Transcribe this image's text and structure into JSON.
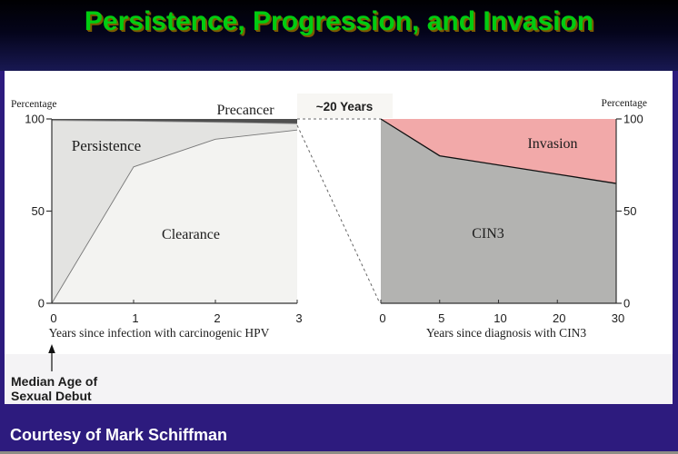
{
  "slide": {
    "title": "Persistence, Progression, and Invasion",
    "credit": "Courtesy of Mark Schiffman"
  },
  "annotations": {
    "duration_label": "~20 Years",
    "median_age_line1": "Median Age of",
    "median_age_line2": "Sexual Debut"
  },
  "colors": {
    "title_green": "#00CC11",
    "title_shadow": "#7A5C00",
    "slide_border_purple": "#2D1B7E",
    "footer_bar": "#2D1B7E",
    "duration_label_orange": "#F4752C",
    "median_age_purple": "#6633CC",
    "clearance_fill": "#F3F3F1",
    "persistence_fill": "#E3E3E1",
    "precancer_fill": "#4F4F4F",
    "cin3_fill": "#B3B3B1",
    "invasion_fill": "#F2A9A9",
    "axis_color": "#333333"
  },
  "chart_data": [
    {
      "type": "area",
      "subtype": "stacked-boundary",
      "title": "",
      "xlabel": "Years since infection with carcinogenic HPV",
      "ylabel": "Percentage",
      "xticks": [
        "0",
        "1",
        "2",
        "3"
      ],
      "yticks": [
        0,
        50,
        100
      ],
      "ylim": [
        0,
        100
      ],
      "yaxis_side": "left",
      "grid": false,
      "series": [
        {
          "name": "Clearance",
          "boundary": [
            0,
            74,
            89,
            94
          ],
          "color": "#F3F3F1",
          "line": "#777777"
        },
        {
          "name": "Persistence",
          "boundary": [
            99.2,
            98.8,
            98.2,
            97.4
          ],
          "color": "#E3E3E1",
          "line": "#999999"
        },
        {
          "name": "Precancer",
          "boundary": [
            100,
            100,
            100,
            100
          ],
          "color": "#4F4F4F",
          "line": null
        }
      ]
    },
    {
      "type": "area",
      "subtype": "stacked-boundary",
      "title": "",
      "xlabel": "Years since diagnosis with CIN3",
      "ylabel": "Percentage",
      "xticks": [
        "0",
        "5",
        "10",
        "20",
        "30"
      ],
      "yticks": [
        0,
        50,
        100
      ],
      "ylim": [
        0,
        100
      ],
      "yaxis_side": "right",
      "grid": false,
      "series": [
        {
          "name": "CIN3",
          "boundary": [
            100,
            80,
            75,
            70,
            65
          ],
          "color": "#B3B3B1",
          "line": "#111111"
        },
        {
          "name": "Invasion",
          "boundary": [
            100,
            100,
            100,
            100,
            100
          ],
          "color": "#F2A9A9",
          "line": null
        }
      ]
    }
  ]
}
